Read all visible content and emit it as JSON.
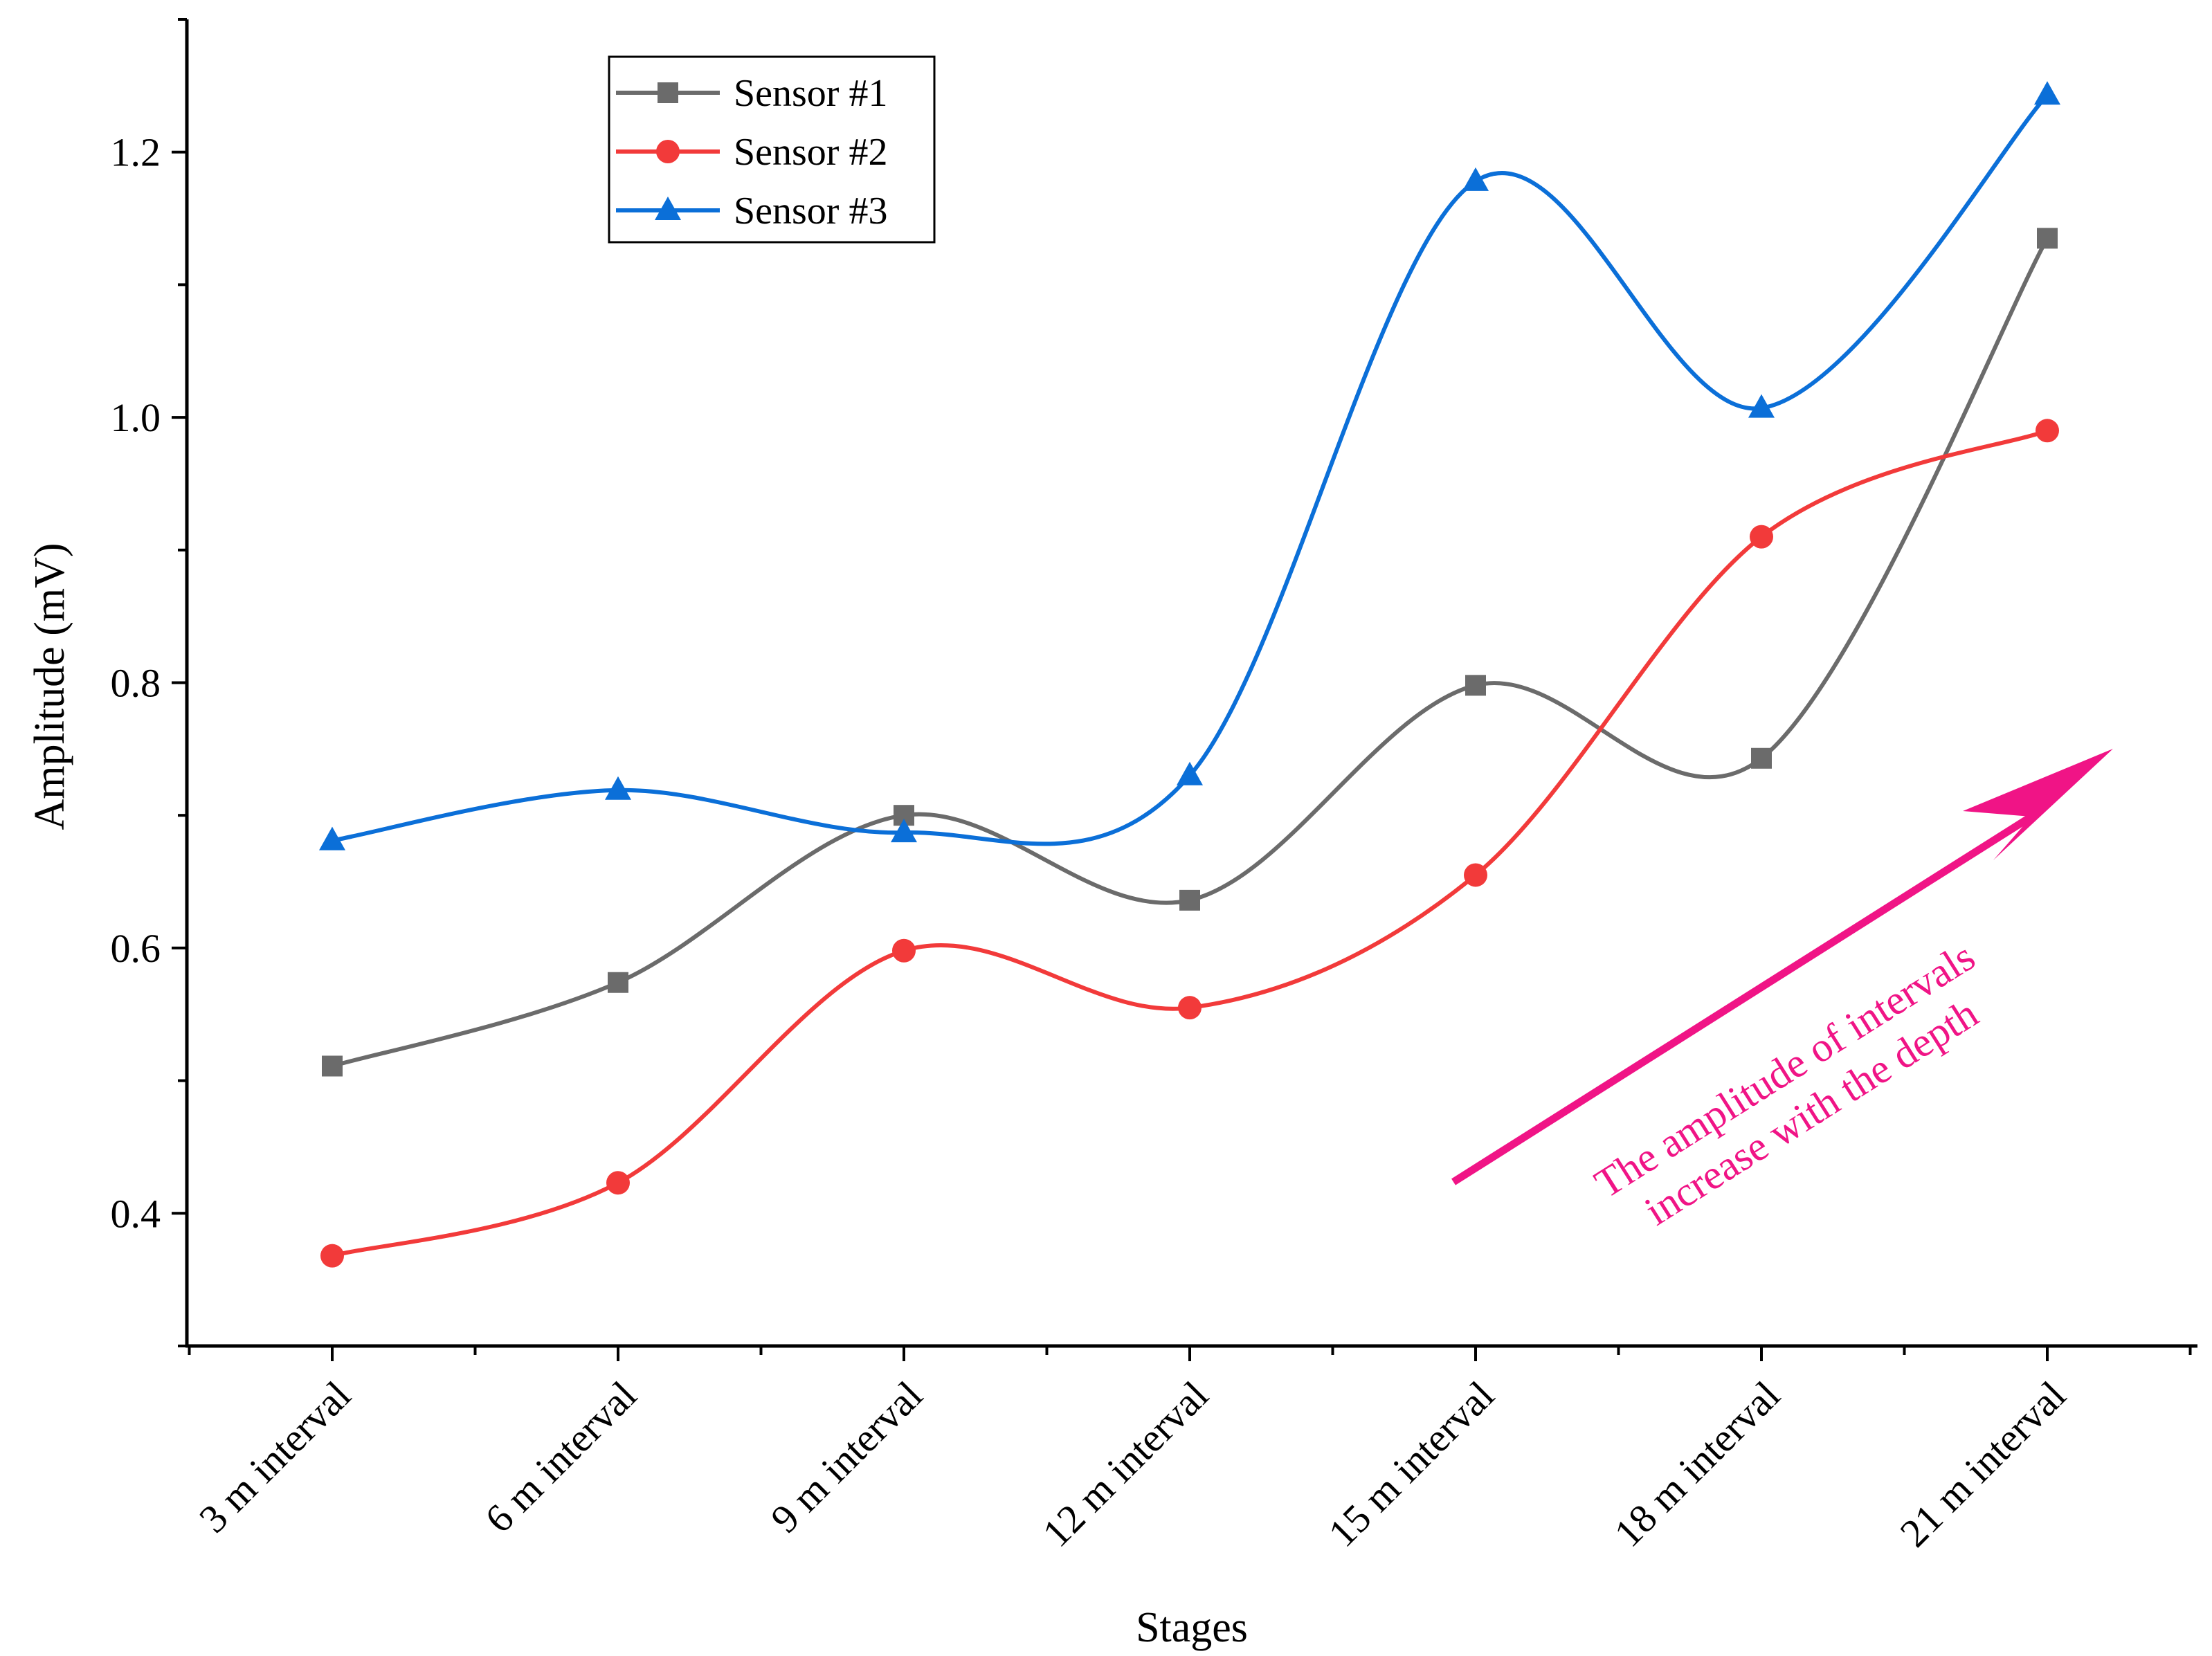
{
  "chart_data": {
    "type": "line",
    "title": "",
    "xlabel": "Stages",
    "ylabel": "Amplitude (mV)",
    "ylim": [
      0.3,
      1.3
    ],
    "yticks": [
      0.4,
      0.6,
      0.8,
      1.0,
      1.2
    ],
    "ytick_labels": [
      "0.4",
      "0.6",
      "0.8",
      "1.0",
      "1.2"
    ],
    "categories": [
      "3 m interval",
      "6 m interval",
      "9 m interval",
      "12 m interval",
      "15 m interval",
      "18 m interval",
      "21 m interval"
    ],
    "legend_position": "top-left",
    "grid": false,
    "series": [
      {
        "name": "Sensor #1",
        "color": "#6b6b6b",
        "marker": "square",
        "values": [
          0.511,
          0.574,
          0.7,
          0.636,
          0.798,
          0.743,
          1.135
        ]
      },
      {
        "name": "Sensor #2",
        "color": "#f23a3a",
        "marker": "circle",
        "values": [
          0.368,
          0.423,
          0.598,
          0.555,
          0.655,
          0.91,
          0.99
        ]
      },
      {
        "name": "Sensor #3",
        "color": "#0b6fd8",
        "marker": "triangle",
        "values": [
          0.681,
          0.719,
          0.687,
          0.73,
          1.178,
          1.007,
          1.243
        ]
      }
    ],
    "annotation": {
      "lines": [
        "The amplitude of intervals",
        "increase with the depth"
      ],
      "color": "#f01486"
    }
  }
}
